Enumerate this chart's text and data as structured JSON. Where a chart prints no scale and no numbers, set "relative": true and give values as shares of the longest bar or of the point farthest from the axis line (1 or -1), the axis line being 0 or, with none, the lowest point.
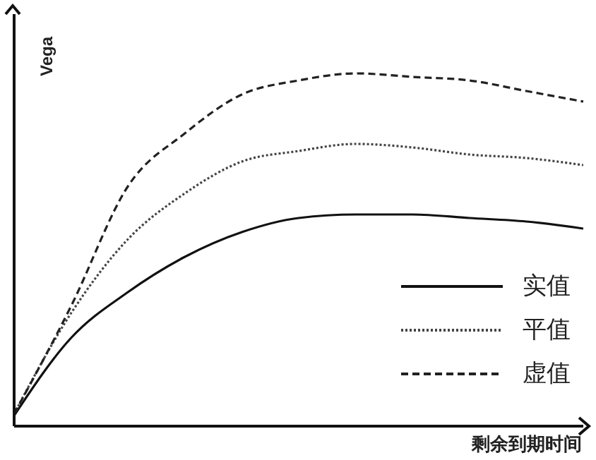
{
  "chart_data": {
    "type": "line",
    "relative": true,
    "xlabel": "剩余到期时间",
    "ylabel": "Vega",
    "categories": [
      null,
      null,
      null,
      null,
      null,
      null,
      null,
      null,
      null,
      null,
      null
    ],
    "legend": "bottom right",
    "marker": "none",
    "grid": false,
    "series": [
      {
        "name": "实值",
        "color": "#111111",
        "line_style": "solid",
        "values": [
          0.03,
          0.25,
          0.38,
          0.48,
          0.55,
          0.59,
          0.6,
          0.6,
          0.59,
          0.58,
          0.56
        ]
      },
      {
        "name": "平值",
        "color": "#444444",
        "line_style": "dotted",
        "values": [
          0.035,
          0.32,
          0.53,
          0.66,
          0.75,
          0.78,
          0.8,
          0.79,
          0.77,
          0.76,
          0.74
        ]
      },
      {
        "name": "虚值",
        "color": "#222222",
        "line_style": "dashed",
        "values": [
          0.035,
          0.34,
          0.68,
          0.83,
          0.94,
          0.98,
          1.0,
          0.99,
          0.98,
          0.95,
          0.92
        ]
      }
    ]
  }
}
